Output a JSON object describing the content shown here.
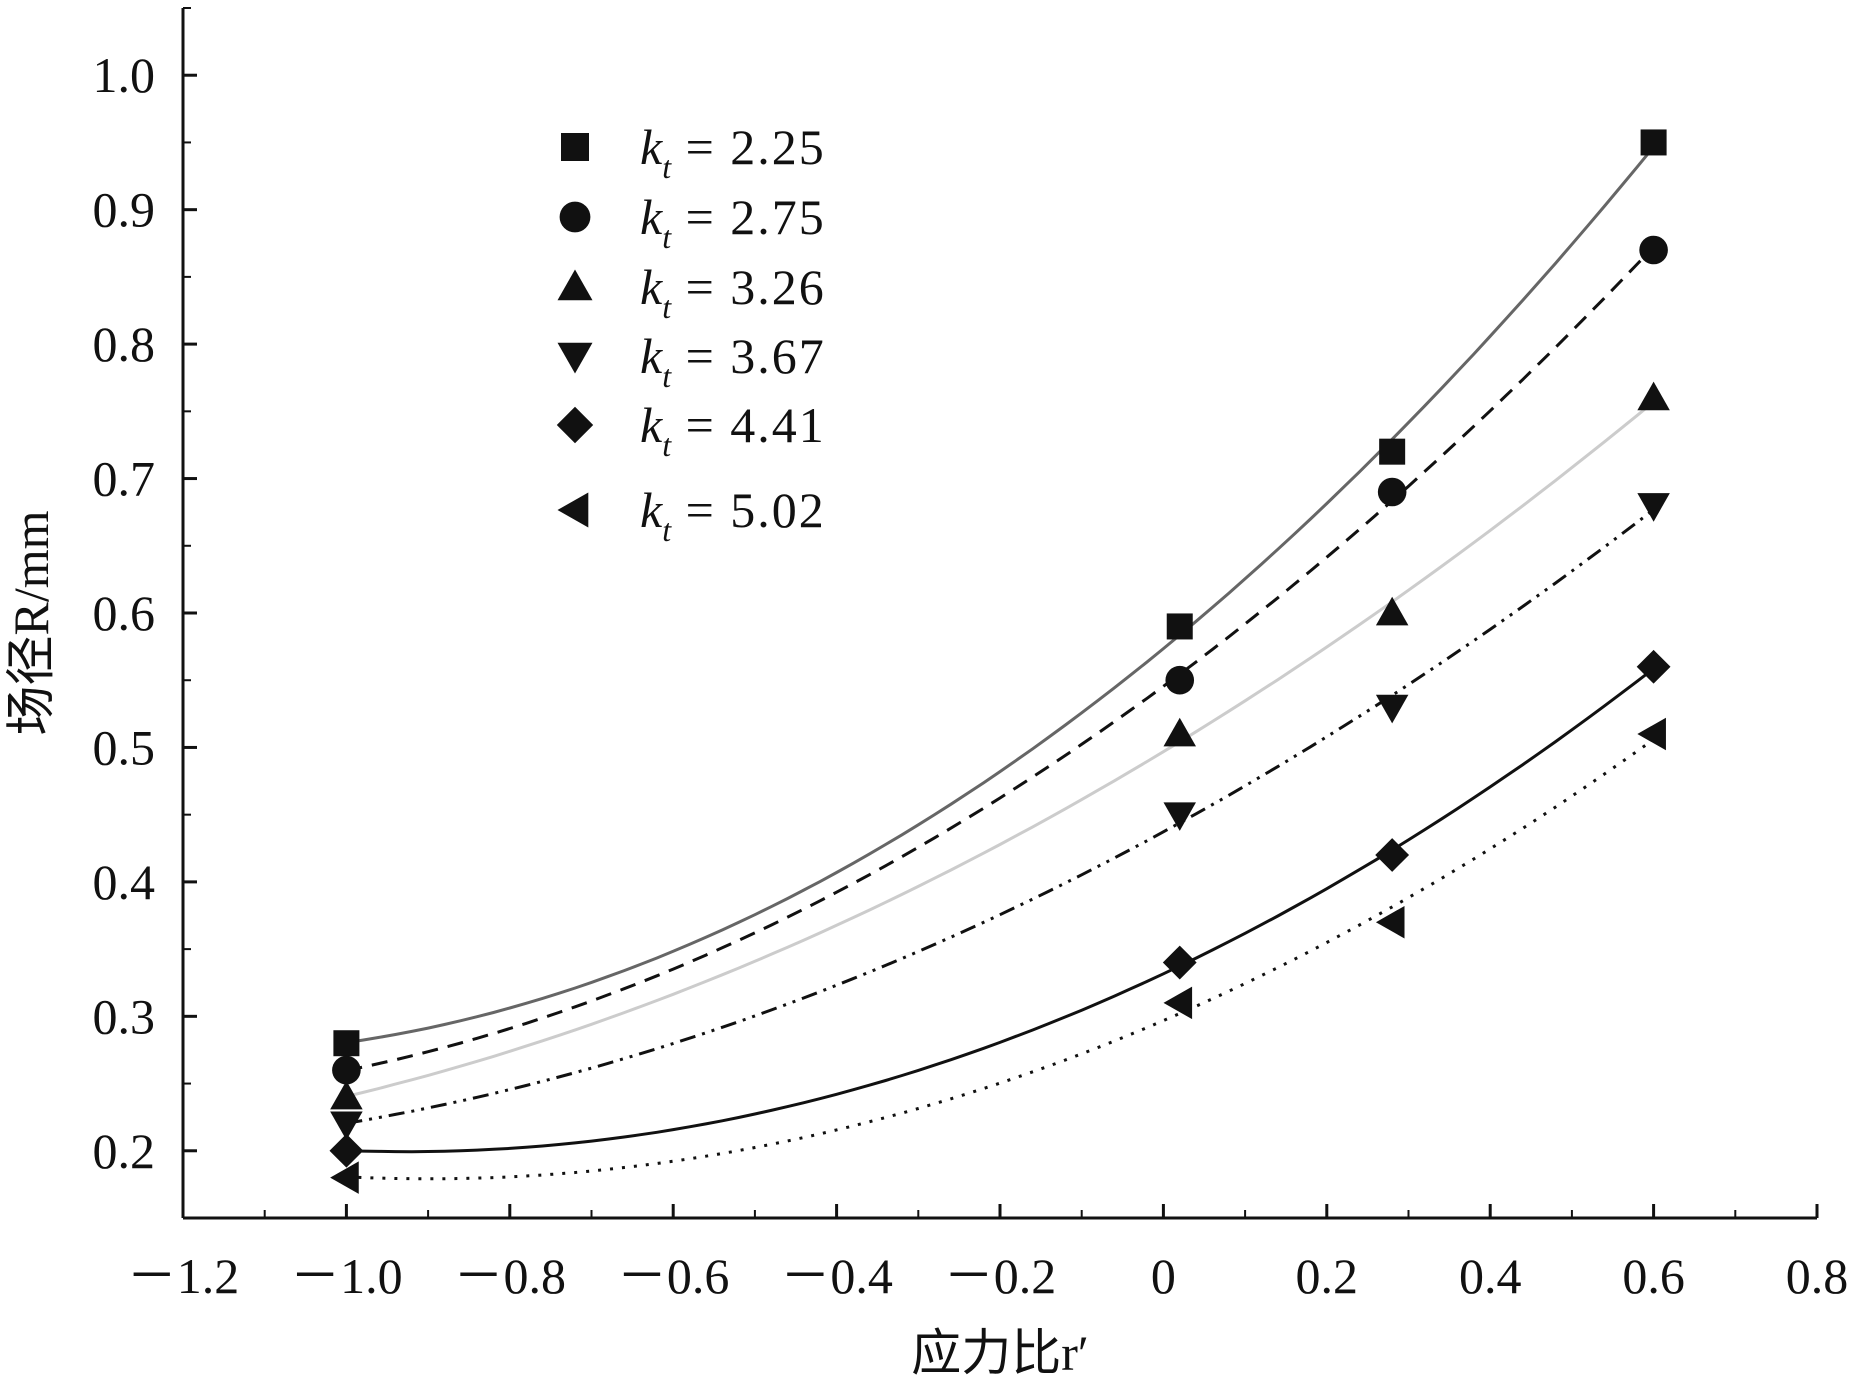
{
  "chart_data": {
    "type": "scatter",
    "xlabel": "应力比r′",
    "ylabel": "场径R/mm",
    "xlim": [
      -1.2,
      0.8
    ],
    "ylim": [
      0.15,
      1.05
    ],
    "x_ticks": [
      -1.2,
      -1.0,
      -0.8,
      -0.6,
      -0.4,
      -0.2,
      0,
      0.2,
      0.4,
      0.6,
      0.8
    ],
    "x_tick_labels": [
      "－1.2",
      "－1.0",
      "－0.8",
      "－0.6",
      "－0.4",
      "－0.2",
      "0",
      "0.2",
      "0.4",
      "0.6",
      "0.8"
    ],
    "y_ticks": [
      0.2,
      0.3,
      0.4,
      0.5,
      0.6,
      0.7,
      0.8,
      0.9,
      1.0
    ],
    "y_tick_labels": [
      "0.2",
      "0.3",
      "0.4",
      "0.5",
      "0.6",
      "0.7",
      "0.8",
      "0.9",
      "1.0"
    ],
    "legend_position": "top-left",
    "grid": false,
    "series": [
      {
        "name": "kt = 2.25",
        "label_main": "k",
        "label_sub": "t",
        "label_rest": " = 2.25",
        "marker": "square",
        "line_style": "solid",
        "line_color": "#666666",
        "x": [
          -1.0,
          0.02,
          0.28,
          0.6
        ],
        "y": [
          0.28,
          0.59,
          0.72,
          0.95
        ]
      },
      {
        "name": "kt = 2.75",
        "label_main": "k",
        "label_sub": "t",
        "label_rest": " = 2.75",
        "marker": "circle",
        "line_style": "dashed",
        "line_color": "#111111",
        "x": [
          -1.0,
          0.02,
          0.28,
          0.6
        ],
        "y": [
          0.26,
          0.55,
          0.69,
          0.87
        ]
      },
      {
        "name": "kt = 3.26",
        "label_main": "k",
        "label_sub": "t",
        "label_rest": " = 3.26",
        "marker": "triangle-up",
        "line_style": "solid",
        "line_color": "#cccccc",
        "x": [
          -1.0,
          0.02,
          0.28,
          0.6
        ],
        "y": [
          0.24,
          0.51,
          0.6,
          0.76
        ]
      },
      {
        "name": "kt = 3.67",
        "label_main": "k",
        "label_sub": "t",
        "label_rest": " = 3.67",
        "marker": "triangle-down",
        "line_style": "dash-dot-dot",
        "line_color": "#111111",
        "x": [
          -1.0,
          0.02,
          0.28,
          0.6
        ],
        "y": [
          0.22,
          0.45,
          0.53,
          0.68
        ]
      },
      {
        "name": "kt = 4.41",
        "label_main": "k",
        "label_sub": "t",
        "label_rest": " = 4.41",
        "marker": "diamond",
        "line_style": "solid",
        "line_color": "#111111",
        "x": [
          -1.0,
          0.02,
          0.28,
          0.6
        ],
        "y": [
          0.2,
          0.34,
          0.42,
          0.56
        ]
      },
      {
        "name": "kt = 5.02",
        "label_main": "k",
        "label_sub": "t",
        "label_rest": " = 5.02",
        "marker": "triangle-left",
        "line_style": "dotted",
        "line_color": "#111111",
        "x": [
          -1.0,
          0.02,
          0.28,
          0.6
        ],
        "y": [
          0.18,
          0.31,
          0.37,
          0.51
        ]
      }
    ]
  }
}
